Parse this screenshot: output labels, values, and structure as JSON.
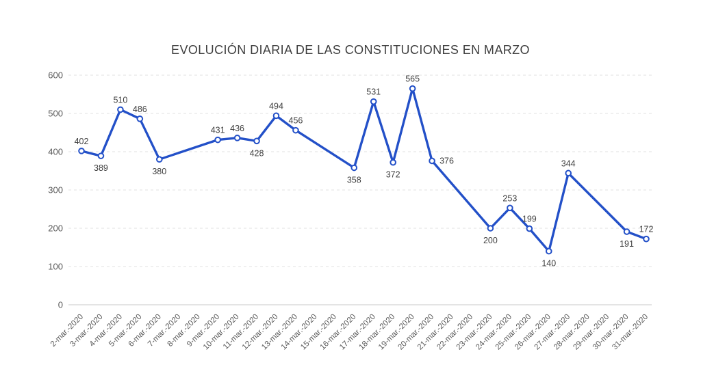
{
  "chart_data": {
    "type": "line",
    "title": "EVOLUCIÓN DIARIA DE LAS CONSTITUCIONES EN MARZO",
    "xlabel": "",
    "ylabel": "",
    "ylim": [
      0,
      600
    ],
    "y_ticks": [
      0,
      100,
      200,
      300,
      400,
      500,
      600
    ],
    "grid": "horizontal-dashed",
    "legend": "none",
    "categories": [
      "2-mar.-2020",
      "3-mar.-2020",
      "4-mar.-2020",
      "5-mar.-2020",
      "6-mar.-2020",
      "7-mar.-2020",
      "8-mar.-2020",
      "9-mar.-2020",
      "10-mar.-2020",
      "11-mar.-2020",
      "12-mar.-2020",
      "13-mar.-2020",
      "14-mar.-2020",
      "15-mar.-2020",
      "16-mar.-2020",
      "17-mar.-2020",
      "18-mar.-2020",
      "19-mar.-2020",
      "20-mar.-2020",
      "21-mar.-2020",
      "22-mar.-2020",
      "23-mar.-2020",
      "24-mar.-2020",
      "25-mar.-2020",
      "26-mar.-2020",
      "27-mar.-2020",
      "28-mar.-2020",
      "29-mar.-2020",
      "30-mar.-2020",
      "31-mar.-2020"
    ],
    "values": [
      402,
      389,
      510,
      486,
      380,
      null,
      null,
      431,
      436,
      428,
      494,
      456,
      null,
      null,
      358,
      531,
      372,
      565,
      376,
      null,
      null,
      200,
      253,
      199,
      140,
      344,
      null,
      null,
      191,
      172
    ],
    "label_placement": [
      "above",
      "below",
      "above",
      "above",
      "below",
      null,
      null,
      "above",
      "above",
      "below",
      "above",
      "above",
      null,
      null,
      "below",
      "above",
      "below",
      "above",
      "right",
      null,
      null,
      "below",
      "above",
      "above",
      "below",
      "above",
      null,
      null,
      "below",
      "above"
    ],
    "colors": {
      "line": "#2350c8",
      "marker_fill": "#ffffff",
      "grid": "#e0e0e0",
      "axis": "#c8c8c8",
      "title": "#3f3f3f",
      "data_label": "#3f3f3f",
      "tick_label": "#595959"
    }
  }
}
